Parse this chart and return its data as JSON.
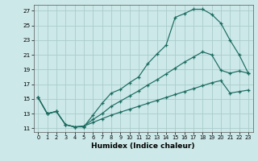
{
  "bg_color": "#cce8e8",
  "grid_color": "#aacccc",
  "line_color": "#1a6b60",
  "xlim": [
    -0.5,
    23.5
  ],
  "ylim": [
    10.5,
    27.8
  ],
  "xticks": [
    0,
    1,
    2,
    3,
    4,
    5,
    6,
    7,
    8,
    9,
    10,
    11,
    12,
    13,
    14,
    15,
    16,
    17,
    18,
    19,
    20,
    21,
    22,
    23
  ],
  "yticks": [
    11,
    13,
    15,
    17,
    19,
    21,
    23,
    25,
    27
  ],
  "xlabel": "Humidex (Indice chaleur)",
  "line1_x": [
    0,
    1,
    2,
    3,
    4,
    5,
    6,
    7,
    8,
    9,
    10,
    11,
    12,
    13,
    14,
    15,
    16,
    17,
    18,
    19,
    20,
    21,
    22,
    23
  ],
  "line1_y": [
    15.2,
    13.0,
    13.3,
    11.5,
    11.2,
    11.2,
    12.8,
    14.4,
    15.8,
    16.3,
    17.2,
    18.0,
    19.8,
    21.1,
    22.3,
    26.1,
    26.6,
    27.2,
    27.2,
    26.5,
    25.3,
    23.0,
    21.0,
    18.5
  ],
  "line2_x": [
    0,
    1,
    2,
    3,
    4,
    5,
    6,
    7,
    8,
    9,
    10,
    11,
    12,
    13,
    14,
    15,
    16,
    17,
    18,
    19,
    20,
    21,
    22,
    23
  ],
  "line2_y": [
    15.2,
    13.0,
    13.3,
    11.5,
    11.2,
    11.3,
    12.2,
    13.0,
    14.0,
    14.7,
    15.4,
    16.1,
    16.9,
    17.6,
    18.4,
    19.2,
    20.0,
    20.7,
    21.4,
    21.0,
    18.9,
    18.5,
    18.8,
    18.5
  ],
  "line3_x": [
    0,
    1,
    2,
    3,
    4,
    5,
    6,
    7,
    8,
    9,
    10,
    11,
    12,
    13,
    14,
    15,
    16,
    17,
    18,
    19,
    20,
    21,
    22,
    23
  ],
  "line3_y": [
    15.2,
    13.0,
    13.3,
    11.5,
    11.2,
    11.3,
    11.8,
    12.3,
    12.8,
    13.2,
    13.6,
    14.0,
    14.4,
    14.8,
    15.2,
    15.6,
    16.0,
    16.4,
    16.8,
    17.2,
    17.5,
    15.8,
    16.0,
    16.2
  ]
}
